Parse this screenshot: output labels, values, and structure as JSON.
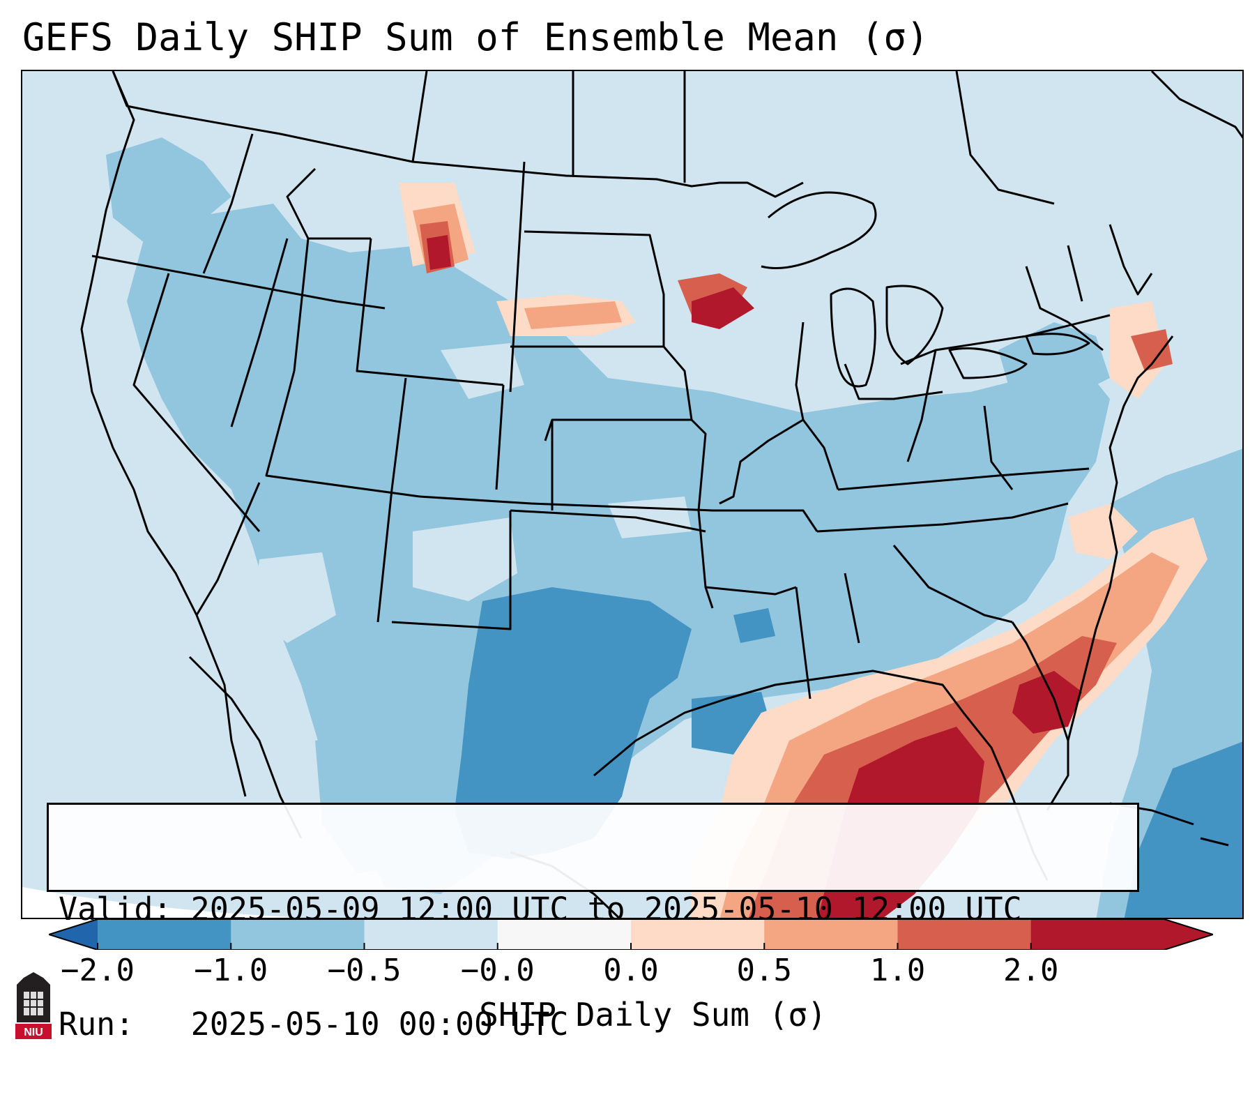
{
  "title": "GEFS Daily SHIP Sum of Ensemble Mean (σ)",
  "info": {
    "valid_label": "Valid:",
    "valid_value": "2025-05-09 12:00 UTC to 2025-05-10 12:00 UTC",
    "run_label": "Run:",
    "run_value": "2025-05-10 00:00 UTC"
  },
  "colorbar": {
    "label": "SHIP Daily Sum (σ)",
    "ticks": [
      "−2.0",
      "−1.0",
      "−0.5",
      "−0.0",
      "0.0",
      "0.5",
      "1.0",
      "2.0"
    ],
    "colors": [
      "#4393c3",
      "#92c5de",
      "#d1e5f0",
      "#f7f7f7",
      "#fddbc7",
      "#f4a582",
      "#d6604d",
      "#b2182b"
    ],
    "extend_low_color": "#2166ac",
    "extend_high_color": "#b2182b"
  },
  "logo": {
    "text": "NIU",
    "color": "#c8102e"
  },
  "map": {
    "background": "#d1e5f0",
    "outside_projection": "#ffffff",
    "colors": {
      "light_blue": "#d1e5f0",
      "mid_blue": "#92c5de",
      "dark_blue": "#4393c3",
      "light_red": "#fddbc7",
      "mid_red": "#f4a582",
      "red": "#d6604d",
      "dark_red": "#b2182b"
    }
  }
}
